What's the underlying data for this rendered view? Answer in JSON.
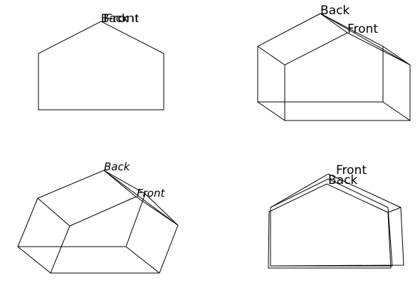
{
  "colors": {
    "background": "#ffffff",
    "stroke": "#000000"
  },
  "views": [
    {
      "id": "view-1",
      "labels": {
        "back": "Back",
        "front": "Front"
      }
    },
    {
      "id": "view-2",
      "labels": {
        "back": "Back",
        "front": "Front"
      }
    },
    {
      "id": "view-3",
      "labels": {
        "back": "Back",
        "front": "Front"
      }
    },
    {
      "id": "view-4",
      "labels": {
        "back": "Back",
        "front": "Front"
      }
    }
  ]
}
